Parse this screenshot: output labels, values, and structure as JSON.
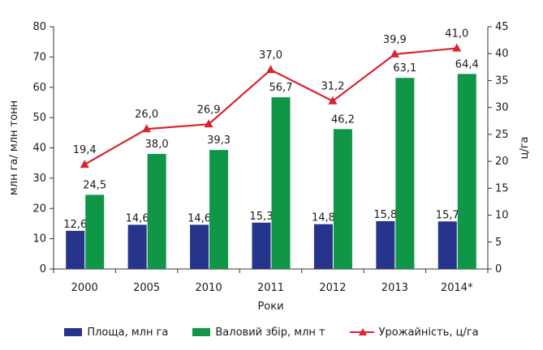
{
  "chart_data": {
    "type": "bar+line",
    "categories": [
      "2000",
      "2005",
      "2010",
      "2011",
      "2012",
      "2013",
      "2014*"
    ],
    "series": [
      {
        "name": "Площа, млн га",
        "kind": "bar",
        "axis": "left",
        "color": "#27348b",
        "values": [
          12.6,
          14.6,
          14.6,
          15.3,
          14.8,
          15.8,
          15.7
        ],
        "labels": [
          "12,6",
          "14,6",
          "14,6",
          "15,3",
          "14,8",
          "15,8",
          "15,7"
        ]
      },
      {
        "name": "Валовий збір, млн т",
        "kind": "bar",
        "axis": "left",
        "color": "#0f9647",
        "values": [
          24.5,
          38.0,
          39.3,
          56.7,
          46.2,
          63.1,
          64.4
        ],
        "labels": [
          "24,5",
          "38,0",
          "39,3",
          "56,7",
          "46,2",
          "63,1",
          "64,4"
        ]
      },
      {
        "name": "Урожайність, ц/га",
        "kind": "line",
        "axis": "right",
        "color": "#d9232e",
        "values": [
          19.4,
          26.0,
          26.9,
          37.0,
          31.2,
          39.9,
          41.0
        ],
        "labels": [
          "19,4",
          "26,0",
          "26,9",
          "37,0",
          "31,2",
          "39,9",
          "41,0"
        ]
      }
    ],
    "xlabel": "Роки",
    "ylabel": "млн га/ млн тонн",
    "y2label": "ц/га",
    "ylim": [
      0,
      80
    ],
    "y2lim": [
      0,
      45
    ],
    "yticks": [
      0,
      10,
      20,
      30,
      40,
      50,
      60,
      70,
      80
    ],
    "y2ticks": [
      0,
      5,
      10,
      15,
      20,
      25,
      30,
      35,
      40,
      45
    ],
    "grid": false,
    "legend_position": "bottom"
  },
  "legend": {
    "items": [
      {
        "label": "Площа, млн га"
      },
      {
        "label": "Валовий збір, млн т"
      },
      {
        "label": "Урожайність, ц/га"
      }
    ]
  }
}
